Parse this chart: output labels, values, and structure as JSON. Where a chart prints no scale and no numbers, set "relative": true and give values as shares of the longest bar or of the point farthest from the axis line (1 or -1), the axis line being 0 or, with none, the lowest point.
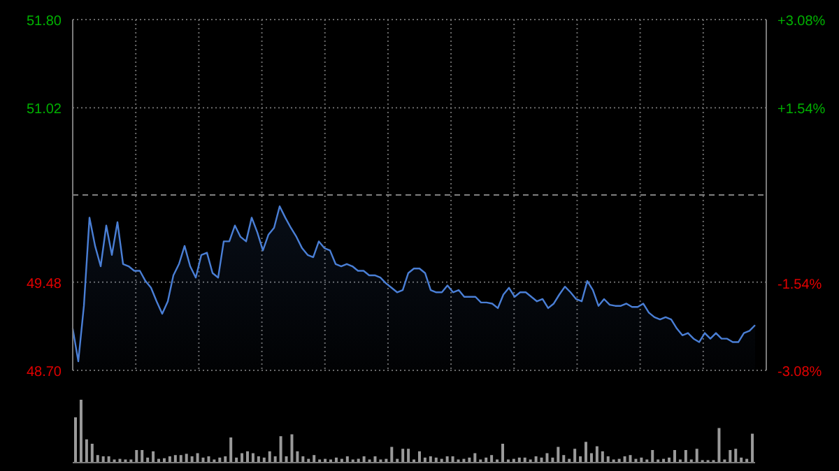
{
  "chart_data": [
    {
      "type": "area",
      "categories": [
        null,
        null,
        null,
        null,
        null,
        null,
        null,
        null,
        null,
        null,
        null,
        null,
        null,
        null,
        null,
        null,
        null,
        null,
        null,
        null,
        null,
        null,
        null,
        null,
        null,
        null,
        null,
        null,
        null,
        null,
        null,
        null,
        null,
        null,
        null,
        null,
        null,
        null,
        null,
        null,
        null,
        null,
        null,
        null,
        null,
        null,
        null,
        null,
        null,
        null,
        null,
        null,
        null,
        null,
        null,
        null,
        null,
        null,
        null,
        null,
        null,
        null,
        null,
        null,
        null,
        null,
        null,
        null,
        null,
        null,
        null,
        null,
        null,
        null,
        null,
        null,
        null,
        null,
        null,
        null,
        null,
        null,
        null,
        null,
        null,
        null,
        null,
        null,
        null,
        null,
        null,
        null,
        null,
        null,
        null,
        null,
        null,
        null,
        null,
        null,
        null,
        null,
        null,
        null,
        null,
        null,
        null,
        null,
        null,
        null,
        null,
        null,
        null,
        null,
        null,
        null,
        null,
        null,
        null,
        null,
        null,
        null,
        null
      ],
      "series": [
        {
          "color": "#4a7fd6",
          "values": [
            49.07,
            48.78,
            49.27,
            50.05,
            49.8,
            49.62,
            49.98,
            49.72,
            50.01,
            49.64,
            49.62,
            49.58,
            49.58,
            49.49,
            49.43,
            49.31,
            49.2,
            49.31,
            49.54,
            49.64,
            49.8,
            49.62,
            49.52,
            49.72,
            49.74,
            49.56,
            49.52,
            49.84,
            49.84,
            49.98,
            49.88,
            49.84,
            50.05,
            49.92,
            49.76,
            49.9,
            49.96,
            50.15,
            50.05,
            49.96,
            49.88,
            49.78,
            49.72,
            49.7,
            49.84,
            49.78,
            49.76,
            49.64,
            49.62,
            49.64,
            49.62,
            49.58,
            49.58,
            49.54,
            49.54,
            49.52,
            49.47,
            49.43,
            49.39,
            49.41,
            49.56,
            49.6,
            49.6,
            49.56,
            49.41,
            49.39,
            49.39,
            49.45,
            49.39,
            49.41,
            49.35,
            49.35,
            49.35,
            49.3,
            49.3,
            49.29,
            49.25,
            49.37,
            49.43,
            49.35,
            49.39,
            49.39,
            49.35,
            49.31,
            49.33,
            49.25,
            49.29,
            49.37,
            49.44,
            49.39,
            49.33,
            49.31,
            49.49,
            49.41,
            49.27,
            49.33,
            49.28,
            49.27,
            49.27,
            49.29,
            49.26,
            49.26,
            49.29,
            49.21,
            49.17,
            49.15,
            49.17,
            49.15,
            49.07,
            49.01,
            49.03,
            48.98,
            48.95,
            49.03,
            48.98,
            49.03,
            48.98,
            48.98,
            48.95,
            48.95,
            49.03,
            49.05,
            49.1
          ]
        }
      ],
      "ylim": [
        48.7,
        51.8
      ],
      "yticks": [
        {
          "value": 48.7,
          "label": "48.70"
        },
        49.48,
        51.02,
        {
          "value": 51.8,
          "label": "51.80"
        }
      ],
      "y2lim": [
        -3.08,
        3.08
      ],
      "y2ticks": [
        {
          "value": -3.08,
          "label": "-3.08%"
        },
        {
          "value": -1.54,
          "label": "-1.54%"
        },
        {
          "value": 1.54,
          "label": "+1.54%"
        },
        {
          "value": 3.08,
          "label": "+3.08%"
        }
      ],
      "ref_lines": [
        {
          "axis": "y",
          "value": 50.25,
          "color": "#808080",
          "line_style": "dashed"
        }
      ],
      "grid": true
    },
    {
      "type": "bar",
      "relative": true,
      "categories": [
        null,
        null,
        null,
        null,
        null,
        null,
        null,
        null,
        null,
        null,
        null,
        null,
        null,
        null,
        null,
        null,
        null,
        null,
        null,
        null,
        null,
        null,
        null,
        null,
        null,
        null,
        null,
        null,
        null,
        null,
        null,
        null,
        null,
        null,
        null,
        null,
        null,
        null,
        null,
        null,
        null,
        null,
        null,
        null,
        null,
        null,
        null,
        null,
        null,
        null,
        null,
        null,
        null,
        null,
        null,
        null,
        null,
        null,
        null,
        null,
        null,
        null,
        null,
        null,
        null,
        null,
        null,
        null,
        null,
        null,
        null,
        null,
        null,
        null,
        null,
        null,
        null,
        null,
        null,
        null,
        null,
        null,
        null,
        null,
        null,
        null,
        null,
        null,
        null,
        null,
        null,
        null,
        null,
        null,
        null,
        null,
        null,
        null,
        null,
        null,
        null,
        null,
        null,
        null,
        null,
        null,
        null,
        null,
        null,
        null,
        null,
        null,
        null,
        null,
        null,
        null,
        null,
        null,
        null,
        null,
        null,
        null,
        null
      ],
      "series": [
        {
          "color": "#9a9a9a",
          "values": [
            0.72,
            1,
            0.37,
            0.3,
            0.12,
            0.1,
            0.1,
            0.05,
            0.06,
            0.05,
            0.05,
            0.2,
            0.2,
            0.08,
            0.18,
            0.06,
            0.07,
            0.1,
            0.12,
            0.12,
            0.14,
            0.1,
            0.15,
            0.08,
            0.1,
            0.05,
            0.08,
            0.1,
            0.4,
            0.08,
            0.15,
            0.18,
            0.15,
            0.1,
            0.08,
            0.18,
            0.1,
            0.42,
            0.1,
            0.45,
            0.18,
            0.1,
            0.06,
            0.12,
            0.05,
            0.06,
            0.05,
            0.08,
            0.06,
            0.1,
            0.05,
            0.06,
            0.1,
            0.05,
            0.1,
            0.05,
            0.06,
            0.25,
            0.06,
            0.22,
            0.22,
            0.05,
            0.18,
            0.08,
            0.1,
            0.08,
            0.06,
            0.1,
            0.1,
            0.05,
            0.06,
            0.08,
            0.15,
            0.05,
            0.08,
            0.12,
            0.05,
            0.3,
            0.05,
            0.06,
            0.08,
            0.08,
            0.05,
            0.1,
            0.08,
            0.15,
            0.08,
            0.25,
            0.12,
            0.06,
            0.22,
            0.1,
            0.33,
            0.15,
            0.26,
            0.18,
            0.1,
            0.05,
            0.06,
            0.1,
            0.12,
            0.06,
            0.08,
            0.05,
            0.2,
            0.05,
            0.06,
            0.08,
            0.2,
            0.05,
            0.2,
            0.05,
            0.22,
            0.04,
            0.04,
            0.04,
            0.55,
            0.05,
            0.2,
            0.22,
            0.08,
            0.06,
            0.46
          ]
        }
      ]
    }
  ]
}
